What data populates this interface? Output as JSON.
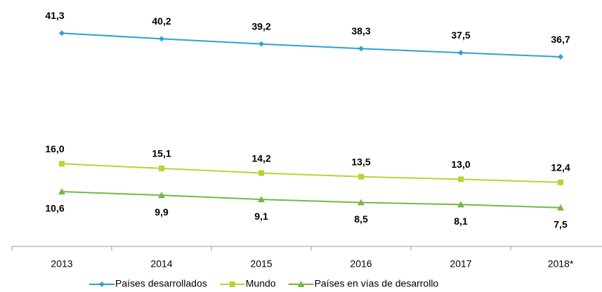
{
  "chart_data": {
    "type": "line",
    "categories": [
      "2013",
      "2014",
      "2015",
      "2016",
      "2017",
      "2018*"
    ],
    "series": [
      {
        "name": "Países desarrollados",
        "color": "#2aa3d4",
        "marker": "diamond",
        "values": [
          41.3,
          40.2,
          39.2,
          38.3,
          37.5,
          36.7
        ],
        "value_labels": [
          "41,3",
          "40,2",
          "39,2",
          "38,3",
          "37,5",
          "36,7"
        ]
      },
      {
        "name": "Mundo",
        "color": "#b7d433",
        "marker": "square",
        "values": [
          16.0,
          15.1,
          14.2,
          13.5,
          13.0,
          12.4
        ],
        "value_labels": [
          "16,0",
          "15,1",
          "14,2",
          "13,5",
          "13,0",
          "12,4"
        ]
      },
      {
        "name": "Países en vías de desarrollo",
        "color": "#72b847",
        "marker": "triangle",
        "values": [
          10.6,
          9.9,
          9.1,
          8.5,
          8.1,
          7.5
        ],
        "value_labels": [
          "10,6",
          "9,9",
          "9,1",
          "8,5",
          "8,1",
          "7,5"
        ]
      }
    ],
    "ylim": [
      0,
      45
    ],
    "legend": "bottom",
    "grid": false
  }
}
